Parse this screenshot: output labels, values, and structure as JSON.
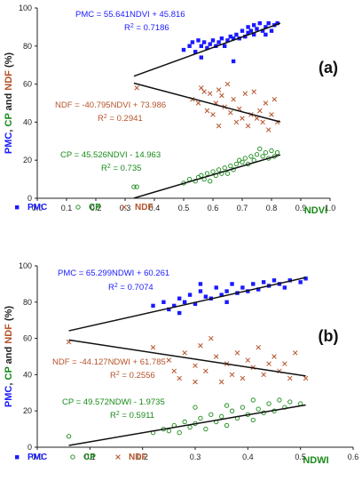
{
  "colors": {
    "pmc": "#1a1aff",
    "cp": "#1a8a1a",
    "ndf": "#b5532a",
    "axis": "#222222",
    "line": "#111111"
  },
  "chart_data": [
    {
      "type": "scatter",
      "panel_label": "(a)",
      "xlabel": "NDVI",
      "ylabel_parts": [
        "PMC",
        ", ",
        "CP",
        " and ",
        "NDF",
        " (%)"
      ],
      "xlim": [
        0.0,
        1.0
      ],
      "ylim": [
        0,
        100
      ],
      "xticks": [
        "0.0",
        "0.1",
        "0.2",
        "0.3",
        "0.4",
        "0.5",
        "0.6",
        "0.7",
        "0.8",
        "0.9",
        "1.0"
      ],
      "yticks": [
        "0",
        "20",
        "40",
        "60",
        "80",
        "100"
      ],
      "legend": [
        "PMC",
        "CP",
        "NDF"
      ],
      "series": [
        {
          "name": "PMC",
          "marker": "square",
          "equation": "PMC = 55.641NDVI + 45.816",
          "r2_value": "0.7186",
          "fit": {
            "slope": 55.641,
            "intercept": 45.816,
            "x0": 0.33,
            "x1": 0.83
          },
          "points": [
            [
              0.5,
              78
            ],
            [
              0.52,
              80
            ],
            [
              0.53,
              82
            ],
            [
              0.54,
              77
            ],
            [
              0.55,
              83
            ],
            [
              0.56,
              80
            ],
            [
              0.57,
              82
            ],
            [
              0.58,
              79
            ],
            [
              0.59,
              81
            ],
            [
              0.6,
              83
            ],
            [
              0.61,
              80
            ],
            [
              0.62,
              82
            ],
            [
              0.63,
              84
            ],
            [
              0.64,
              80
            ],
            [
              0.65,
              83
            ],
            [
              0.66,
              85
            ],
            [
              0.67,
              84
            ],
            [
              0.68,
              86
            ],
            [
              0.69,
              84
            ],
            [
              0.7,
              88
            ],
            [
              0.71,
              85
            ],
            [
              0.72,
              87
            ],
            [
              0.72,
              90
            ],
            [
              0.73,
              88
            ],
            [
              0.74,
              91
            ],
            [
              0.74,
              86
            ],
            [
              0.75,
              89
            ],
            [
              0.76,
              92
            ],
            [
              0.77,
              88
            ],
            [
              0.78,
              90
            ],
            [
              0.79,
              92
            ],
            [
              0.8,
              88
            ],
            [
              0.81,
              91
            ],
            [
              0.82,
              92
            ],
            [
              0.67,
              72
            ],
            [
              0.56,
              74
            ],
            [
              0.78,
              86
            ]
          ]
        },
        {
          "name": "NDF",
          "marker": "cross",
          "equation": "NDF = -40.795NDVI + 73.986",
          "r2_value": "0.2941",
          "fit": {
            "slope": -40.795,
            "intercept": 73.986,
            "x0": 0.33,
            "x1": 0.83
          },
          "points": [
            [
              0.34,
              58
            ],
            [
              0.53,
              52
            ],
            [
              0.55,
              50
            ],
            [
              0.57,
              56
            ],
            [
              0.58,
              46
            ],
            [
              0.59,
              55
            ],
            [
              0.6,
              44
            ],
            [
              0.61,
              50
            ],
            [
              0.62,
              38
            ],
            [
              0.63,
              54
            ],
            [
              0.64,
              48
            ],
            [
              0.65,
              60
            ],
            [
              0.66,
              45
            ],
            [
              0.67,
              52
            ],
            [
              0.68,
              40
            ],
            [
              0.69,
              47
            ],
            [
              0.7,
              42
            ],
            [
              0.71,
              55
            ],
            [
              0.72,
              38
            ],
            [
              0.73,
              44
            ],
            [
              0.74,
              56
            ],
            [
              0.75,
              42
            ],
            [
              0.76,
              46
            ],
            [
              0.77,
              40
            ],
            [
              0.78,
              50
            ],
            [
              0.79,
              36
            ],
            [
              0.8,
              44
            ],
            [
              0.81,
              52
            ],
            [
              0.82,
              40
            ],
            [
              0.56,
              58
            ],
            [
              0.62,
              57
            ]
          ]
        },
        {
          "name": "CP",
          "marker": "circle",
          "equation": "CP = 45.526NDVI - 14.963",
          "r2_value": "0.735",
          "fit": {
            "slope": 45.526,
            "intercept": -14.963,
            "x0": 0.33,
            "x1": 0.83
          },
          "points": [
            [
              0.33,
              6
            ],
            [
              0.34,
              6
            ],
            [
              0.5,
              8
            ],
            [
              0.52,
              10
            ],
            [
              0.54,
              9
            ],
            [
              0.55,
              11
            ],
            [
              0.56,
              12
            ],
            [
              0.57,
              10
            ],
            [
              0.58,
              13
            ],
            [
              0.6,
              14
            ],
            [
              0.61,
              12
            ],
            [
              0.62,
              15
            ],
            [
              0.63,
              13
            ],
            [
              0.64,
              16
            ],
            [
              0.66,
              17
            ],
            [
              0.67,
              15
            ],
            [
              0.68,
              18
            ],
            [
              0.69,
              20
            ],
            [
              0.7,
              19
            ],
            [
              0.71,
              21
            ],
            [
              0.72,
              18
            ],
            [
              0.73,
              22
            ],
            [
              0.74,
              20
            ],
            [
              0.75,
              23
            ],
            [
              0.76,
              26
            ],
            [
              0.77,
              22
            ],
            [
              0.78,
              24
            ],
            [
              0.79,
              21
            ],
            [
              0.8,
              25
            ],
            [
              0.81,
              22
            ],
            [
              0.82,
              24
            ],
            [
              0.65,
              13
            ],
            [
              0.59,
              9
            ]
          ]
        }
      ]
    },
    {
      "type": "scatter",
      "panel_label": "(b)",
      "xlabel": "NDWI",
      "ylabel_parts": [
        "PMC",
        ", ",
        "CP",
        " and ",
        "NDF",
        " (%)"
      ],
      "xlim": [
        0.0,
        0.6
      ],
      "ylim": [
        0,
        100
      ],
      "xticks": [
        "0.0",
        "0.1",
        "0.2",
        "0.3",
        "0.4",
        "0.5",
        "0.6"
      ],
      "yticks": [
        "0",
        "20",
        "40",
        "60",
        "80",
        "100"
      ],
      "legend": [
        "PMC",
        "CP",
        "NDF"
      ],
      "series": [
        {
          "name": "PMC",
          "marker": "square",
          "equation": "PMC = 65.299NDWI + 60.261",
          "r2_value": "0.7074",
          "fit": {
            "slope": 65.299,
            "intercept": 60.261,
            "x0": 0.06,
            "x1": 0.51
          },
          "points": [
            [
              0.22,
              78
            ],
            [
              0.24,
              80
            ],
            [
              0.25,
              76
            ],
            [
              0.26,
              78
            ],
            [
              0.27,
              82
            ],
            [
              0.28,
              80
            ],
            [
              0.29,
              84
            ],
            [
              0.3,
              79
            ],
            [
              0.31,
              86
            ],
            [
              0.32,
              83
            ],
            [
              0.33,
              82
            ],
            [
              0.34,
              88
            ],
            [
              0.35,
              84
            ],
            [
              0.36,
              86
            ],
            [
              0.37,
              90
            ],
            [
              0.38,
              85
            ],
            [
              0.39,
              88
            ],
            [
              0.4,
              86
            ],
            [
              0.41,
              90
            ],
            [
              0.42,
              87
            ],
            [
              0.43,
              91
            ],
            [
              0.44,
              89
            ],
            [
              0.45,
              92
            ],
            [
              0.46,
              90
            ],
            [
              0.47,
              88
            ],
            [
              0.48,
              92
            ],
            [
              0.5,
              91
            ],
            [
              0.51,
              93
            ],
            [
              0.31,
              90
            ],
            [
              0.36,
              80
            ],
            [
              0.27,
              74
            ]
          ]
        },
        {
          "name": "NDF",
          "marker": "cross",
          "equation": "NDF = -44.127NDWI + 61.785",
          "r2_value": "0.2556",
          "fit": {
            "slope": -44.127,
            "intercept": 61.785,
            "x0": 0.06,
            "x1": 0.51
          },
          "points": [
            [
              0.06,
              58
            ],
            [
              0.22,
              55
            ],
            [
              0.25,
              48
            ],
            [
              0.27,
              38
            ],
            [
              0.28,
              52
            ],
            [
              0.3,
              45
            ],
            [
              0.31,
              56
            ],
            [
              0.32,
              42
            ],
            [
              0.33,
              60
            ],
            [
              0.34,
              50
            ],
            [
              0.35,
              36
            ],
            [
              0.36,
              46
            ],
            [
              0.37,
              40
            ],
            [
              0.38,
              52
            ],
            [
              0.39,
              38
            ],
            [
              0.4,
              48
            ],
            [
              0.41,
              44
            ],
            [
              0.42,
              55
            ],
            [
              0.43,
              40
            ],
            [
              0.44,
              46
            ],
            [
              0.45,
              50
            ],
            [
              0.46,
              42
            ],
            [
              0.47,
              46
            ],
            [
              0.48,
              38
            ],
            [
              0.49,
              52
            ],
            [
              0.51,
              38
            ],
            [
              0.3,
              36
            ],
            [
              0.26,
              42
            ]
          ]
        },
        {
          "name": "CP",
          "marker": "circle",
          "equation": "CP = 49.572NDWI - 1.9735",
          "r2_value": "0.5911",
          "fit": {
            "slope": 49.572,
            "intercept": -1.9735,
            "x0": 0.06,
            "x1": 0.51
          },
          "points": [
            [
              0.06,
              6
            ],
            [
              0.22,
              8
            ],
            [
              0.24,
              10
            ],
            [
              0.25,
              9
            ],
            [
              0.26,
              12
            ],
            [
              0.27,
              8
            ],
            [
              0.28,
              14
            ],
            [
              0.29,
              11
            ],
            [
              0.3,
              13
            ],
            [
              0.31,
              16
            ],
            [
              0.32,
              10
            ],
            [
              0.33,
              18
            ],
            [
              0.34,
              14
            ],
            [
              0.35,
              17
            ],
            [
              0.36,
              12
            ],
            [
              0.37,
              20
            ],
            [
              0.38,
              16
            ],
            [
              0.39,
              22
            ],
            [
              0.4,
              18
            ],
            [
              0.41,
              15
            ],
            [
              0.42,
              21
            ],
            [
              0.43,
              19
            ],
            [
              0.44,
              24
            ],
            [
              0.45,
              20
            ],
            [
              0.46,
              26
            ],
            [
              0.47,
              22
            ],
            [
              0.48,
              25
            ],
            [
              0.5,
              24
            ],
            [
              0.3,
              22
            ],
            [
              0.36,
              23
            ],
            [
              0.41,
              26
            ]
          ]
        }
      ]
    }
  ]
}
